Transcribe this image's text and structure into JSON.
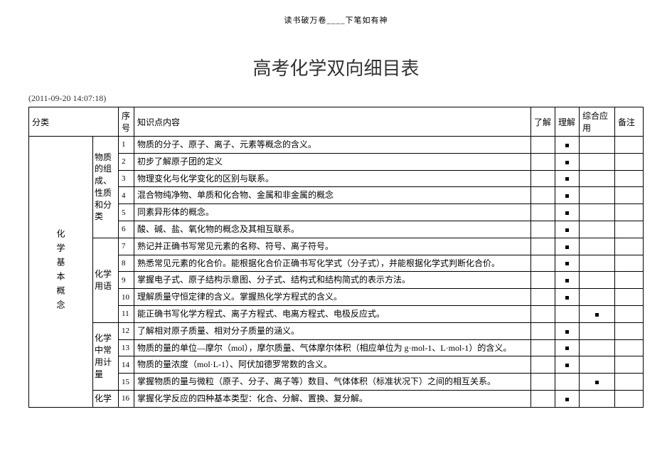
{
  "header_motto": "读书破万卷____下笔如有神",
  "title": "高考化学双向细目表",
  "timestamp": "(2011-09-20  14:07:18)",
  "columns": {
    "category": "分类",
    "index": "序号",
    "topic": "知识点内容",
    "understand": "了解",
    "comprehend": "理解",
    "apply": "综合应用",
    "remark": "备注"
  },
  "category_main": "化学基本概念",
  "subgroups": {
    "g1": "物质的组成、性质和分类",
    "g2": "化学用语",
    "g3": "化学中常用计量",
    "g4": "化学"
  },
  "rows": [
    {
      "idx": "1",
      "topic": "物质的分子、原子、离子、元素等概念的含义。",
      "mark": "comprehend"
    },
    {
      "idx": "2",
      "topic": "初步了解原子团的定义",
      "mark": "comprehend"
    },
    {
      "idx": "3",
      "topic": "物理变化与化学变化的区别与联系。",
      "mark": "comprehend"
    },
    {
      "idx": "4",
      "topic": "混合物纯净物、单质和化合物、金属和非金属的概念",
      "mark": "comprehend"
    },
    {
      "idx": "5",
      "topic": "同素异形体的概念。",
      "mark": "comprehend"
    },
    {
      "idx": "6",
      "topic": "酸、碱、盐、氧化物的概念及其相互联系。",
      "mark": "comprehend"
    },
    {
      "idx": "7",
      "topic": "熟记并正确书写常见元素的名称、符号、离子符号。",
      "mark": "comprehend"
    },
    {
      "idx": "8",
      "topic": "熟悉常见元素的化合价。能根据化合价正确书写化学式（分子式），并能根据化学式判断化合价。",
      "mark": "comprehend"
    },
    {
      "idx": "9",
      "topic": "掌握电子式、原子结构示意图、分子式、结构式和结构简式的表示方法。",
      "mark": "comprehend"
    },
    {
      "idx": "10",
      "topic": "理解质量守恒定律的含义。掌握热化学方程式的含义。",
      "mark": "comprehend"
    },
    {
      "idx": "11",
      "topic": "能正确书写化学方程式、离子方程式、电离方程式、电极反应式。",
      "mark": "apply"
    },
    {
      "idx": "12",
      "topic": "了解相对原子质量、相对分子质量的涵义。",
      "mark": "comprehend"
    },
    {
      "idx": "13",
      "topic": "物质的量的单位—摩尔（mol），摩尔质量、气体摩尔体积（相应单位为 g·mol-1、L·mol-1）的含义。",
      "mark": "comprehend"
    },
    {
      "idx": "14",
      "topic": "物质的量浓度（mol·L-1）、阿伏加德罗常数的含义。",
      "mark": "comprehend"
    },
    {
      "idx": "15",
      "topic": "掌握物质的量与微粒（原子、分子、离子等）数目、气体体积（标准状况下）之间的相互关系。",
      "mark": "apply"
    },
    {
      "idx": "16",
      "topic": "掌握化学反应的四种基本类型：化合、分解、置换、复分解。",
      "mark": "comprehend"
    }
  ],
  "styling": {
    "bg": "#ffffff",
    "border": "#000000",
    "title_color": "#333333",
    "title_fontsize": 26,
    "body_fontsize": 12,
    "mark_size": 5
  }
}
